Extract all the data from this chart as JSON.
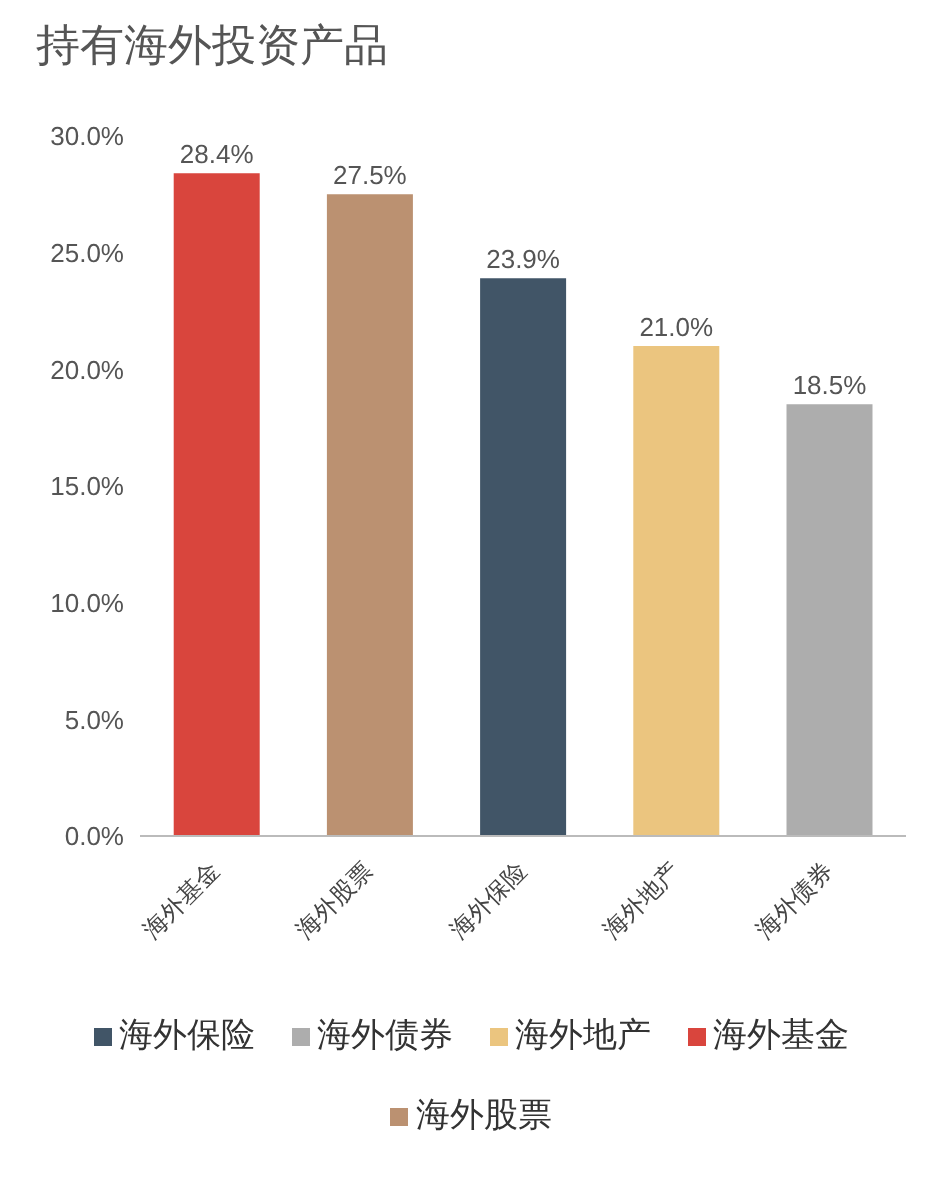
{
  "chart_data": {
    "type": "bar",
    "title": "持有海外投资产品",
    "categories": [
      "海外基金",
      "海外股票",
      "海外保险",
      "海外地产",
      "海外债券"
    ],
    "stacked": true,
    "series": [
      {
        "name": "海外基金",
        "color": "#d9453d",
        "values": [
          28.4,
          null,
          null,
          null,
          null
        ],
        "value_labels": [
          "28.4%",
          null,
          null,
          null,
          null
        ]
      },
      {
        "name": "海外股票",
        "color": "#bb9171",
        "values": [
          null,
          27.5,
          null,
          null,
          null
        ],
        "value_labels": [
          null,
          "27.5%",
          null,
          null,
          null
        ]
      },
      {
        "name": "海外保险",
        "color": "#415567",
        "values": [
          null,
          null,
          23.9,
          null,
          null
        ],
        "value_labels": [
          null,
          null,
          "23.9%",
          null,
          null
        ]
      },
      {
        "name": "海外地产",
        "color": "#ebc57f",
        "values": [
          null,
          null,
          null,
          21.0,
          null
        ],
        "value_labels": [
          null,
          null,
          null,
          "21.0%",
          null
        ]
      },
      {
        "name": "海外债券",
        "color": "#adadad",
        "values": [
          null,
          null,
          null,
          null,
          18.5
        ],
        "value_labels": [
          null,
          null,
          null,
          null,
          "18.5%"
        ]
      }
    ],
    "ylim": [
      0,
      30
    ],
    "yticks": [
      {
        "value": 0,
        "label": "0.0%"
      },
      {
        "value": 5,
        "label": "5.0%"
      },
      {
        "value": 10,
        "label": "10.0%"
      },
      {
        "value": 15,
        "label": "15.0%"
      },
      {
        "value": 20,
        "label": "20.0%"
      },
      {
        "value": 25,
        "label": "25.0%"
      },
      {
        "value": 30,
        "label": "30.0%"
      }
    ],
    "grid": false,
    "legend": "bottom"
  }
}
